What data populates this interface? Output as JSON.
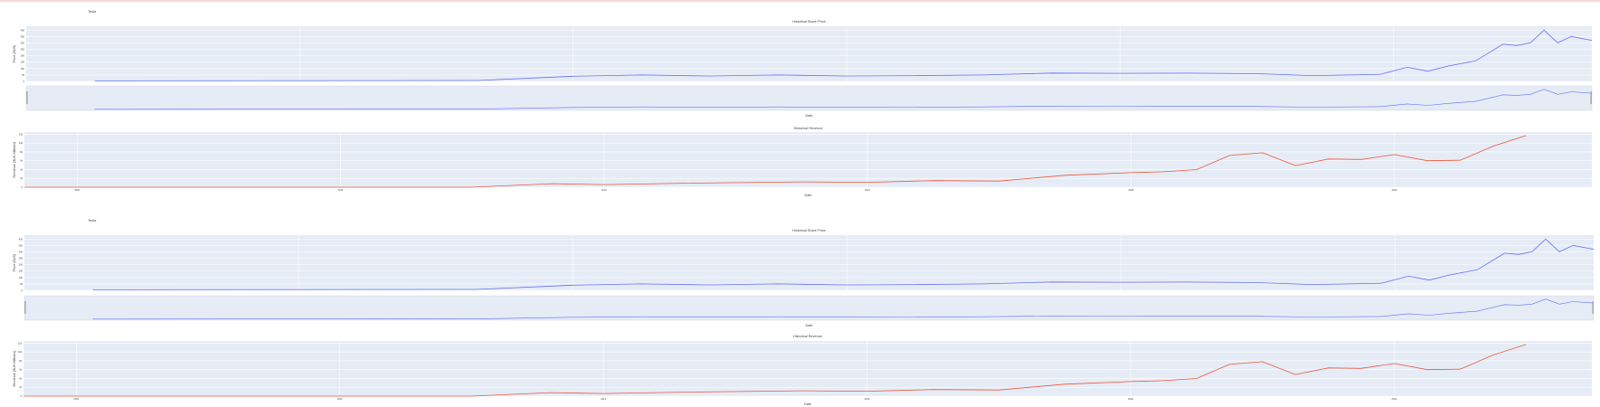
{
  "page": {
    "blocks": [
      {
        "label": "Tesla"
      },
      {
        "label": "Tesla"
      }
    ]
  },
  "colors": {
    "plot_bg": "#e5ecf6",
    "grid": "#ffffff",
    "price_line": "#636efa",
    "revenue_line": "#ef553b",
    "text": "#444444"
  },
  "chart_data": [
    {
      "type": "line",
      "title": "Historical Share Price",
      "xlabel": "Date",
      "ylabel": "Price ($US)",
      "x_range": [
        2010,
        2021.45
      ],
      "ylim": [
        0,
        430
      ],
      "y_ticks": [
        0,
        50,
        100,
        150,
        200,
        250,
        300,
        350,
        400
      ],
      "rangeslider": true,
      "grid": true,
      "series": [
        {
          "name": "",
          "x": [
            2010.5,
            2013.3,
            2014.0,
            2014.5,
            2015.0,
            2015.5,
            2016.0,
            2016.5,
            2017.0,
            2017.5,
            2018.0,
            2018.5,
            2019.0,
            2019.4,
            2019.9,
            2020.1,
            2020.25,
            2020.4,
            2020.6,
            2020.8,
            2020.9,
            2021.0,
            2021.1,
            2021.2,
            2021.3,
            2021.45
          ],
          "y": [
            4,
            7,
            40,
            50,
            42,
            50,
            42,
            45,
            50,
            65,
            63,
            64,
            60,
            45,
            55,
            110,
            80,
            120,
            160,
            290,
            280,
            300,
            400,
            300,
            350,
            320
          ]
        }
      ]
    },
    {
      "type": "line",
      "title": "Historical Revenue",
      "xlabel": "Date",
      "ylabel": "Revenue ($US Millions)",
      "x_range": [
        2009.6,
        2021.5
      ],
      "x_ticks": [
        "2010",
        "2012",
        "2014",
        "2016",
        "2018",
        "2020"
      ],
      "ylim": [
        0,
        12500
      ],
      "y_ticks": [
        0,
        2000,
        4000,
        6000,
        8000,
        10000,
        12000
      ],
      "grid": true,
      "series": [
        {
          "name": "",
          "x": [
            2009.6,
            2013.0,
            2013.6,
            2014.0,
            2014.6,
            2015.5,
            2016.0,
            2016.5,
            2017.0,
            2017.5,
            2018.0,
            2018.25,
            2018.5,
            2018.75,
            2019.0,
            2019.25,
            2019.5,
            2019.75,
            2020.0,
            2020.25,
            2020.5,
            2020.75,
            2021.0
          ],
          "y": [
            0,
            0,
            800,
            600,
            900,
            1200,
            1100,
            1500,
            1400,
            2700,
            3300,
            3500,
            4000,
            7200,
            7800,
            4900,
            6400,
            6300,
            7400,
            6000,
            6100,
            9300,
            11700
          ]
        }
      ]
    },
    {
      "type": "line",
      "title": "Historical Share Price",
      "xlabel": "Date",
      "ylabel": "Price ($US)",
      "x_range": [
        2010,
        2021.45
      ],
      "ylim": [
        0,
        430
      ],
      "y_ticks": [
        0,
        50,
        100,
        150,
        200,
        250,
        300,
        350,
        400
      ],
      "rangeslider": true,
      "grid": true,
      "series": [
        {
          "name": "",
          "x": [
            2010.5,
            2013.3,
            2014.0,
            2014.5,
            2015.0,
            2015.5,
            2016.0,
            2016.5,
            2017.0,
            2017.5,
            2018.0,
            2018.5,
            2019.0,
            2019.4,
            2019.9,
            2020.1,
            2020.25,
            2020.4,
            2020.6,
            2020.8,
            2020.9,
            2021.0,
            2021.1,
            2021.2,
            2021.3,
            2021.45
          ],
          "y": [
            4,
            7,
            40,
            50,
            42,
            50,
            42,
            45,
            50,
            65,
            63,
            64,
            60,
            45,
            55,
            110,
            80,
            120,
            160,
            290,
            280,
            300,
            400,
            300,
            350,
            320
          ]
        }
      ]
    },
    {
      "type": "line",
      "title": "Historical Revenue",
      "xlabel": "Date",
      "ylabel": "Revenue ($US Millions)",
      "x_range": [
        2009.6,
        2021.5
      ],
      "x_ticks": [
        "2010",
        "2012",
        "2014",
        "2016",
        "2018",
        "2020"
      ],
      "ylim": [
        0,
        12500
      ],
      "y_ticks": [
        0,
        2000,
        4000,
        6000,
        8000,
        10000,
        12000
      ],
      "grid": true,
      "series": [
        {
          "name": "",
          "x": [
            2009.6,
            2013.0,
            2013.6,
            2014.0,
            2014.6,
            2015.5,
            2016.0,
            2016.5,
            2017.0,
            2017.5,
            2018.0,
            2018.25,
            2018.5,
            2018.75,
            2019.0,
            2019.25,
            2019.5,
            2019.75,
            2020.0,
            2020.25,
            2020.5,
            2020.75,
            2021.0
          ],
          "y": [
            0,
            0,
            800,
            600,
            900,
            1200,
            1100,
            1500,
            1400,
            2700,
            3300,
            3500,
            4000,
            7200,
            7800,
            4900,
            6400,
            6300,
            7400,
            6000,
            6100,
            9300,
            11700
          ]
        }
      ]
    }
  ]
}
